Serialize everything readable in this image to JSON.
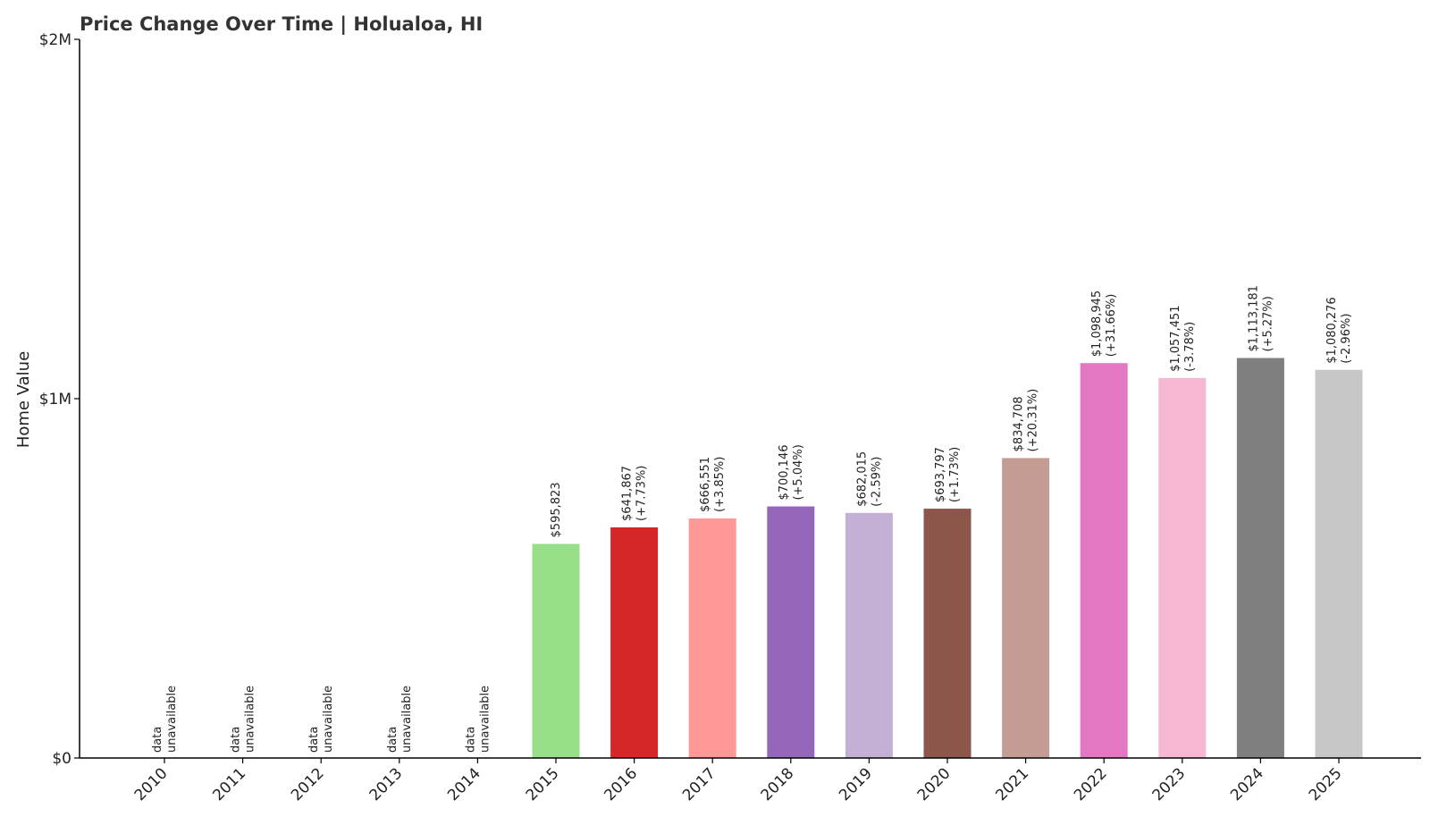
{
  "chart_data": {
    "type": "bar",
    "title": "Price Change Over Time | Holualoa, HI",
    "ylabel": "Home Value",
    "xlabel": "",
    "ylim": [
      0,
      2000000
    ],
    "yticks": [
      {
        "value": 0,
        "label": "$0"
      },
      {
        "value": 1000000,
        "label": "$1M"
      },
      {
        "value": 2000000,
        "label": "$2M"
      }
    ],
    "grid": false,
    "legend": "none",
    "categories": [
      "2010",
      "2011",
      "2012",
      "2013",
      "2014",
      "2015",
      "2016",
      "2017",
      "2018",
      "2019",
      "2020",
      "2021",
      "2022",
      "2023",
      "2024",
      "2025"
    ],
    "values": [
      null,
      null,
      null,
      null,
      null,
      595823,
      641867,
      666551,
      700146,
      682015,
      693797,
      834708,
      1098945,
      1057451,
      1113181,
      1080276
    ],
    "value_labels": [
      [
        "data",
        "unavailable"
      ],
      [
        "data",
        "unavailable"
      ],
      [
        "data",
        "unavailable"
      ],
      [
        "data",
        "unavailable"
      ],
      [
        "data",
        "unavailable"
      ],
      [
        "$595,823"
      ],
      [
        "$641,867",
        "(+7.73%)"
      ],
      [
        "$666,551",
        "(+3.85%)"
      ],
      [
        "$700,146",
        "(+5.04%)"
      ],
      [
        "$682,015",
        "(-2.59%)"
      ],
      [
        "$693,797",
        "(+1.73%)"
      ],
      [
        "$834,708",
        "(+20.31%)"
      ],
      [
        "$1,098,945",
        "(+31.66%)"
      ],
      [
        "$1,057,451",
        "(-3.78%)"
      ],
      [
        "$1,113,181",
        "(+5.27%)"
      ],
      [
        "$1,080,276",
        "(-2.96%)"
      ]
    ],
    "colors": [
      "#1f77b4",
      "#aec7e8",
      "#ff7f0e",
      "#ffbb78",
      "#2ca02c",
      "#98df8a",
      "#d62728",
      "#ff9896",
      "#9467bd",
      "#c5b0d5",
      "#8c564b",
      "#c49c94",
      "#e377c2",
      "#f7b6d2",
      "#7f7f7f",
      "#c7c7c7"
    ]
  }
}
